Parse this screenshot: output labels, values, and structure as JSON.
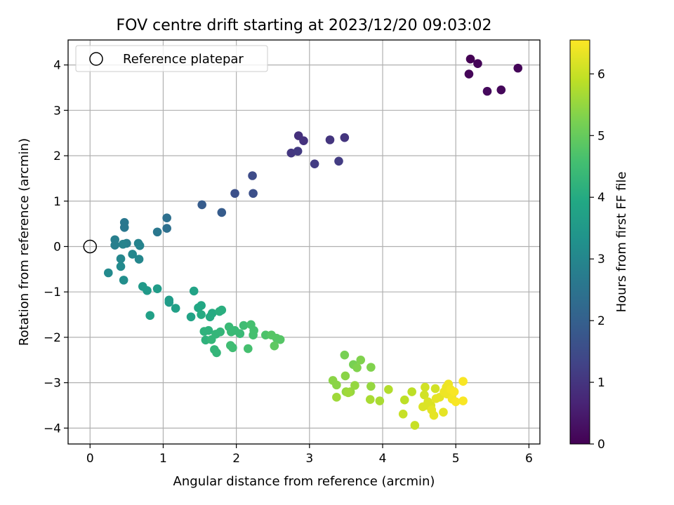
{
  "chart_data": {
    "type": "scatter",
    "title": "FOV centre drift starting at 2023/12/20 09:03:02",
    "xlabel": "Angular distance from reference (arcmin)",
    "ylabel": "Rotation from reference (arcmin)",
    "xlim": [
      -0.3,
      6.15
    ],
    "ylim": [
      -4.35,
      4.55
    ],
    "xticks": [
      0,
      1,
      2,
      3,
      4,
      5,
      6
    ],
    "yticks": [
      -4,
      -3,
      -2,
      -1,
      0,
      1,
      2,
      3,
      4
    ],
    "grid": true,
    "legend": {
      "position": "top-left",
      "entries": [
        "Reference platepar"
      ]
    },
    "reference_point": {
      "x": 0,
      "y": 0
    },
    "colorbar": {
      "label": "Hours from first FF file",
      "range": [
        0,
        6.55
      ],
      "ticks": [
        0,
        1,
        2,
        3,
        4,
        5,
        6
      ],
      "colormap": "viridis"
    },
    "series": [
      {
        "points": [
          {
            "x": 5.2,
            "y": 4.13,
            "c": 0.0
          },
          {
            "x": 5.3,
            "y": 4.03,
            "c": 0.05
          },
          {
            "x": 5.85,
            "y": 3.93,
            "c": 0.08
          },
          {
            "x": 5.18,
            "y": 3.8,
            "c": 0.1
          },
          {
            "x": 5.62,
            "y": 3.45,
            "c": 0.12
          },
          {
            "x": 5.43,
            "y": 3.42,
            "c": 0.15
          },
          {
            "x": 2.85,
            "y": 2.44,
            "c": 0.9
          },
          {
            "x": 2.92,
            "y": 2.33,
            "c": 0.95
          },
          {
            "x": 3.28,
            "y": 2.35,
            "c": 1.0
          },
          {
            "x": 3.48,
            "y": 2.4,
            "c": 1.0
          },
          {
            "x": 2.75,
            "y": 2.06,
            "c": 1.05
          },
          {
            "x": 2.84,
            "y": 2.1,
            "c": 1.1
          },
          {
            "x": 3.07,
            "y": 1.82,
            "c": 1.15
          },
          {
            "x": 3.4,
            "y": 1.88,
            "c": 1.15
          },
          {
            "x": 2.22,
            "y": 1.56,
            "c": 1.5
          },
          {
            "x": 1.98,
            "y": 1.17,
            "c": 1.6
          },
          {
            "x": 2.23,
            "y": 1.17,
            "c": 1.6
          },
          {
            "x": 1.53,
            "y": 0.92,
            "c": 1.9
          },
          {
            "x": 1.8,
            "y": 0.75,
            "c": 1.9
          },
          {
            "x": 1.05,
            "y": 0.63,
            "c": 2.4
          },
          {
            "x": 1.05,
            "y": 0.4,
            "c": 2.4
          },
          {
            "x": 0.47,
            "y": 0.53,
            "c": 2.6
          },
          {
            "x": 0.47,
            "y": 0.42,
            "c": 2.6
          },
          {
            "x": 0.92,
            "y": 0.32,
            "c": 2.6
          },
          {
            "x": 0.34,
            "y": 0.15,
            "c": 2.8
          },
          {
            "x": 0.34,
            "y": 0.03,
            "c": 2.8
          },
          {
            "x": 0.5,
            "y": 0.07,
            "c": 2.8
          },
          {
            "x": 0.45,
            "y": 0.05,
            "c": 2.9
          },
          {
            "x": 0.66,
            "y": 0.07,
            "c": 2.9
          },
          {
            "x": 0.68,
            "y": 0.02,
            "c": 2.9
          },
          {
            "x": 0.58,
            "y": -0.17,
            "c": 3.0
          },
          {
            "x": 0.42,
            "y": -0.27,
            "c": 3.0
          },
          {
            "x": 0.67,
            "y": -0.28,
            "c": 3.0
          },
          {
            "x": 0.25,
            "y": -0.58,
            "c": 3.1
          },
          {
            "x": 0.42,
            "y": -0.44,
            "c": 3.1
          },
          {
            "x": 0.46,
            "y": -0.74,
            "c": 3.2
          },
          {
            "x": 0.72,
            "y": -0.88,
            "c": 3.5
          },
          {
            "x": 0.78,
            "y": -0.97,
            "c": 3.5
          },
          {
            "x": 0.92,
            "y": -0.93,
            "c": 3.6
          },
          {
            "x": 1.08,
            "y": -1.18,
            "c": 3.6
          },
          {
            "x": 1.08,
            "y": -1.23,
            "c": 3.6
          },
          {
            "x": 1.17,
            "y": -1.36,
            "c": 3.7
          },
          {
            "x": 0.82,
            "y": -1.52,
            "c": 3.7
          },
          {
            "x": 1.42,
            "y": -0.98,
            "c": 3.8
          },
          {
            "x": 1.38,
            "y": -1.55,
            "c": 3.8
          },
          {
            "x": 1.48,
            "y": -1.35,
            "c": 3.9
          },
          {
            "x": 1.52,
            "y": -1.3,
            "c": 3.9
          },
          {
            "x": 1.52,
            "y": -1.5,
            "c": 4.0
          },
          {
            "x": 1.64,
            "y": -1.55,
            "c": 4.0
          },
          {
            "x": 1.67,
            "y": -1.47,
            "c": 4.0
          },
          {
            "x": 1.77,
            "y": -1.43,
            "c": 4.1
          },
          {
            "x": 1.8,
            "y": -1.4,
            "c": 4.1
          },
          {
            "x": 1.56,
            "y": -1.87,
            "c": 4.2
          },
          {
            "x": 1.62,
            "y": -1.85,
            "c": 4.2
          },
          {
            "x": 1.58,
            "y": -2.06,
            "c": 4.2
          },
          {
            "x": 1.66,
            "y": -2.05,
            "c": 4.3
          },
          {
            "x": 1.72,
            "y": -1.93,
            "c": 4.3
          },
          {
            "x": 1.78,
            "y": -1.88,
            "c": 4.3
          },
          {
            "x": 1.7,
            "y": -2.27,
            "c": 4.3
          },
          {
            "x": 1.73,
            "y": -2.34,
            "c": 4.3
          },
          {
            "x": 1.9,
            "y": -1.77,
            "c": 4.4
          },
          {
            "x": 1.93,
            "y": -1.88,
            "c": 4.4
          },
          {
            "x": 1.98,
            "y": -1.85,
            "c": 4.4
          },
          {
            "x": 2.05,
            "y": -1.92,
            "c": 4.4
          },
          {
            "x": 1.92,
            "y": -2.18,
            "c": 4.5
          },
          {
            "x": 1.95,
            "y": -2.23,
            "c": 4.5
          },
          {
            "x": 2.1,
            "y": -1.74,
            "c": 4.5
          },
          {
            "x": 2.2,
            "y": -1.72,
            "c": 4.6
          },
          {
            "x": 2.24,
            "y": -1.85,
            "c": 4.6
          },
          {
            "x": 2.23,
            "y": -1.95,
            "c": 4.6
          },
          {
            "x": 2.16,
            "y": -2.25,
            "c": 4.6
          },
          {
            "x": 2.4,
            "y": -1.95,
            "c": 4.7
          },
          {
            "x": 2.48,
            "y": -1.95,
            "c": 4.8
          },
          {
            "x": 2.55,
            "y": -2.02,
            "c": 4.8
          },
          {
            "x": 2.6,
            "y": -2.05,
            "c": 4.8
          },
          {
            "x": 2.52,
            "y": -2.19,
            "c": 4.9
          },
          {
            "x": 3.48,
            "y": -2.39,
            "c": 5.2
          },
          {
            "x": 3.6,
            "y": -2.6,
            "c": 5.2
          },
          {
            "x": 3.65,
            "y": -2.67,
            "c": 5.3
          },
          {
            "x": 3.7,
            "y": -2.5,
            "c": 5.3
          },
          {
            "x": 3.84,
            "y": -2.66,
            "c": 5.3
          },
          {
            "x": 3.49,
            "y": -2.85,
            "c": 5.4
          },
          {
            "x": 3.32,
            "y": -2.95,
            "c": 5.4
          },
          {
            "x": 3.37,
            "y": -3.05,
            "c": 5.4
          },
          {
            "x": 3.62,
            "y": -3.06,
            "c": 5.5
          },
          {
            "x": 3.84,
            "y": -3.08,
            "c": 5.5
          },
          {
            "x": 3.5,
            "y": -3.2,
            "c": 5.5
          },
          {
            "x": 3.56,
            "y": -3.2,
            "c": 5.5
          },
          {
            "x": 3.53,
            "y": -3.22,
            "c": 5.6
          },
          {
            "x": 3.37,
            "y": -3.32,
            "c": 5.6
          },
          {
            "x": 3.83,
            "y": -3.37,
            "c": 5.7
          },
          {
            "x": 3.96,
            "y": -3.4,
            "c": 5.7
          },
          {
            "x": 4.08,
            "y": -3.15,
            "c": 5.8
          },
          {
            "x": 4.4,
            "y": -3.2,
            "c": 5.9
          },
          {
            "x": 4.3,
            "y": -3.38,
            "c": 5.9
          },
          {
            "x": 4.28,
            "y": -3.69,
            "c": 6.0
          },
          {
            "x": 4.44,
            "y": -3.94,
            "c": 6.0
          },
          {
            "x": 4.58,
            "y": -3.1,
            "c": 6.1
          },
          {
            "x": 4.72,
            "y": -3.13,
            "c": 6.1
          },
          {
            "x": 4.57,
            "y": -3.27,
            "c": 6.1
          },
          {
            "x": 4.62,
            "y": -3.42,
            "c": 6.2
          },
          {
            "x": 4.55,
            "y": -3.53,
            "c": 6.2
          },
          {
            "x": 4.6,
            "y": -3.5,
            "c": 6.2
          },
          {
            "x": 4.66,
            "y": -3.5,
            "c": 6.2
          },
          {
            "x": 4.67,
            "y": -3.6,
            "c": 6.3
          },
          {
            "x": 4.7,
            "y": -3.72,
            "c": 6.3
          },
          {
            "x": 4.73,
            "y": -3.35,
            "c": 6.3
          },
          {
            "x": 4.78,
            "y": -3.32,
            "c": 6.3
          },
          {
            "x": 4.83,
            "y": -3.65,
            "c": 6.3
          },
          {
            "x": 4.84,
            "y": -3.2,
            "c": 6.4
          },
          {
            "x": 4.87,
            "y": -3.1,
            "c": 6.4
          },
          {
            "x": 4.9,
            "y": -3.03,
            "c": 6.4
          },
          {
            "x": 4.88,
            "y": -3.25,
            "c": 6.4
          },
          {
            "x": 4.93,
            "y": -3.15,
            "c": 6.45
          },
          {
            "x": 4.95,
            "y": -3.36,
            "c": 6.45
          },
          {
            "x": 4.98,
            "y": -3.2,
            "c": 6.5
          },
          {
            "x": 5.0,
            "y": -3.42,
            "c": 6.5
          },
          {
            "x": 5.1,
            "y": -2.97,
            "c": 6.5
          },
          {
            "x": 5.1,
            "y": -3.4,
            "c": 6.5
          }
        ]
      }
    ]
  }
}
